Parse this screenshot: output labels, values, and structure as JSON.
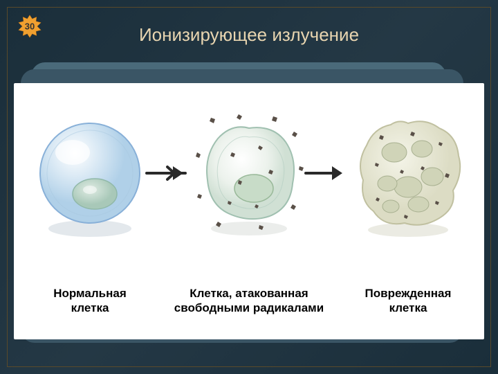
{
  "badge": {
    "text": "30",
    "fill": "#f0a030",
    "stroke": "#c07010"
  },
  "title": "Ионизирующее излучение",
  "background": {
    "slide_gradient_start": "#1a2e3a",
    "slide_gradient_mid": "#243845",
    "frame_border": "#5a4a2a"
  },
  "cards": {
    "back_color": "#4a6a7a",
    "front_color": "#3a5565",
    "radius": 20
  },
  "diagram": {
    "bg": "#ffffff",
    "arrow_color": "#2a2a2a",
    "stages": [
      {
        "label": "Нормальная\nклетка",
        "cell": {
          "outer_fill": "#e8f0f8",
          "outer_stroke": "#88b0d8",
          "highlight": "#ffffff",
          "nucleus_fill": "#c0d8d0",
          "nucleus_stroke": "#90b8a8",
          "shadow": "#b8c8d8"
        }
      },
      {
        "label": "Клетка, атакованная\nсвободными радикалами",
        "cell": {
          "outer_fill": "#f0f4f0",
          "outer_stroke": "#a0c0b0",
          "nucleus_fill": "#c8dcc8",
          "nucleus_stroke": "#98b898",
          "radical_fill": "#5a5048",
          "radical_count": 16
        }
      },
      {
        "label": "Поврежденная\nклетка",
        "cell": {
          "outer_fill": "#e8e8d0",
          "outer_stroke": "#c0c0a0",
          "blob_fill": "#d8dcc0",
          "blob_stroke": "#a8b090",
          "radical_fill": "#5a5048"
        }
      }
    ]
  }
}
